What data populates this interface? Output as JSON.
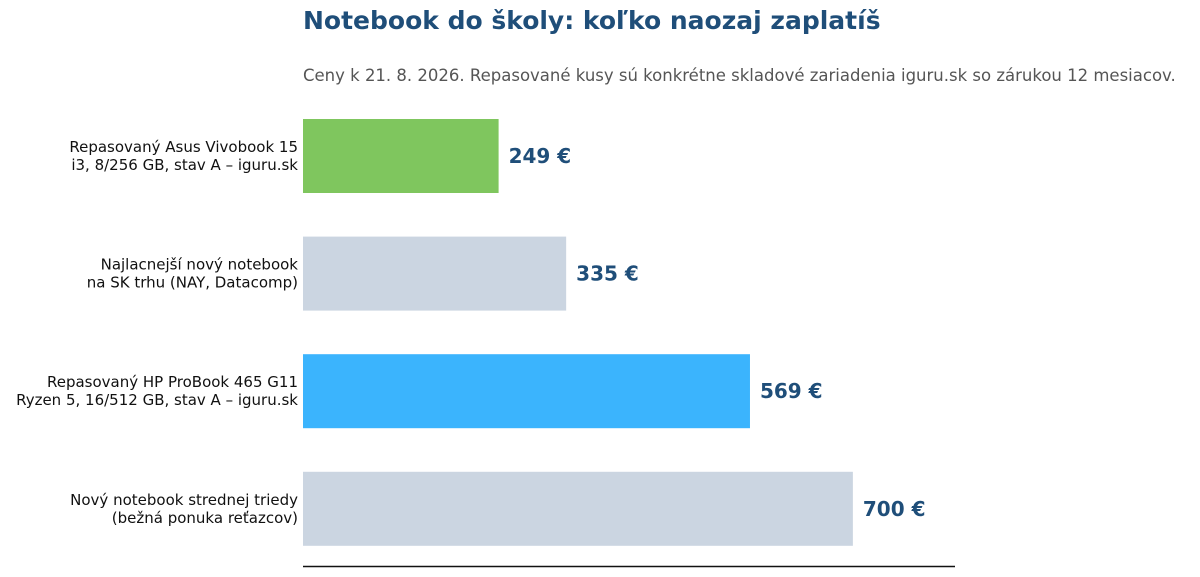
{
  "header": {
    "title": "Notebook do školy: koľko naozaj zaplatíš",
    "subtitle": "Ceny k 21. 8. 2026. Repasované kusy sú konkrétne skladové zariadenia iguru.sk so zárukou 12 mesiacov."
  },
  "colors": {
    "refurb_cheap": "#7fc65e",
    "new": "#cbd5e1",
    "refurb_premium": "#3bb4fd",
    "value_text": "#1f4e79"
  },
  "chart_data": {
    "type": "bar",
    "orientation": "horizontal",
    "title": "Notebook do školy: koľko naozaj zaplatíš",
    "subtitle": "Ceny k 21. 8. 2026. Repasované kusy sú konkrétne skladové zariadenia iguru.sk so zárukou 12 mesiacov.",
    "xlabel": "",
    "ylabel": "",
    "xlim": [
      0,
      830
    ],
    "grid": false,
    "categories": [
      [
        "Repasovaný Asus Vivobook 15",
        "i3, 8/256 GB, stav A – iguru.sk"
      ],
      [
        "Najlacnejší nový notebook",
        "na SK trhu (NAY, Datacomp)"
      ],
      [
        "Repasovaný HP ProBook 465 G11",
        "Ryzen 5, 16/512 GB, stav A – iguru.sk"
      ],
      [
        "Nový notebook strednej triedy",
        "(bežná ponuka reťazcov)"
      ]
    ],
    "values": [
      249,
      335,
      569,
      700
    ],
    "value_labels": [
      "249 €",
      "335 €",
      "569 €",
      "700 €"
    ],
    "bar_colors": [
      "#7fc65e",
      "#cbd5e1",
      "#3bb4fd",
      "#cbd5e1"
    ]
  }
}
